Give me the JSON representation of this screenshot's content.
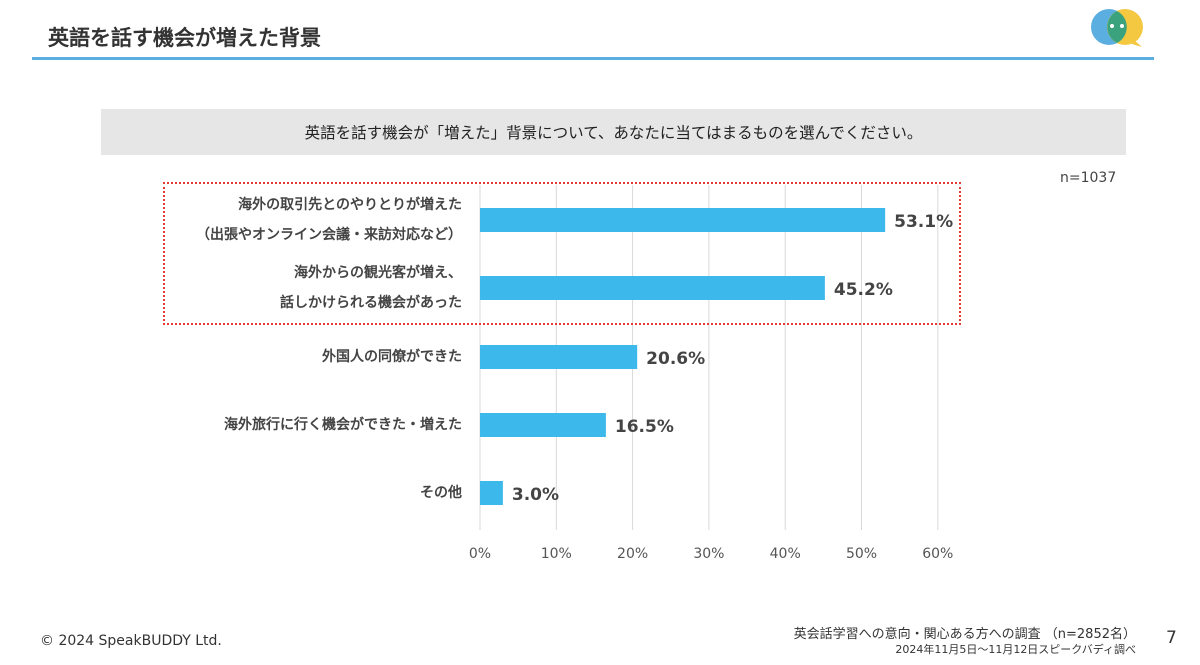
{
  "header": {
    "title": "英語を話す機会が増えた背景"
  },
  "question": "英語を話す機会が「増えた」背景について、あなたに当てはまるものを選んでください。",
  "sample_size": "n=1037",
  "chart_data": {
    "type": "bar",
    "orientation": "horizontal",
    "categories": [
      [
        "海外の取引先とのやりとりが増えた",
        "（出張やオンライン会議・来訪対応など）"
      ],
      [
        "海外からの観光客が増え、",
        "話しかけられる機会があった"
      ],
      [
        "外国人の同僚ができた"
      ],
      [
        "海外旅行に行く機会ができた・増えた"
      ],
      [
        "その他"
      ]
    ],
    "values": [
      53.1,
      45.2,
      20.6,
      16.5,
      3.0
    ],
    "value_labels": [
      "53.1%",
      "45.2%",
      "20.6%",
      "16.5%",
      "3.0%"
    ],
    "x_ticks": [
      "0%",
      "10%",
      "20%",
      "30%",
      "40%",
      "50%",
      "60%"
    ],
    "xlim": [
      0,
      60
    ],
    "grid": true,
    "bar_color": "#3db8ea",
    "highlighted_categories": [
      0,
      1
    ],
    "highlight_color": "#e53935"
  },
  "footer": {
    "copyright": "© 2024 SpeakBUDDY Ltd.",
    "source_line1": "英会話学習への意向・関心ある方への調査 （n=2852名）",
    "source_line2": "2024年11月5日〜11月12日スピークバディ調べ",
    "page_number": "7"
  },
  "logo_colors": [
    "#5aaee0",
    "#f5c842",
    "#3aa37e"
  ]
}
